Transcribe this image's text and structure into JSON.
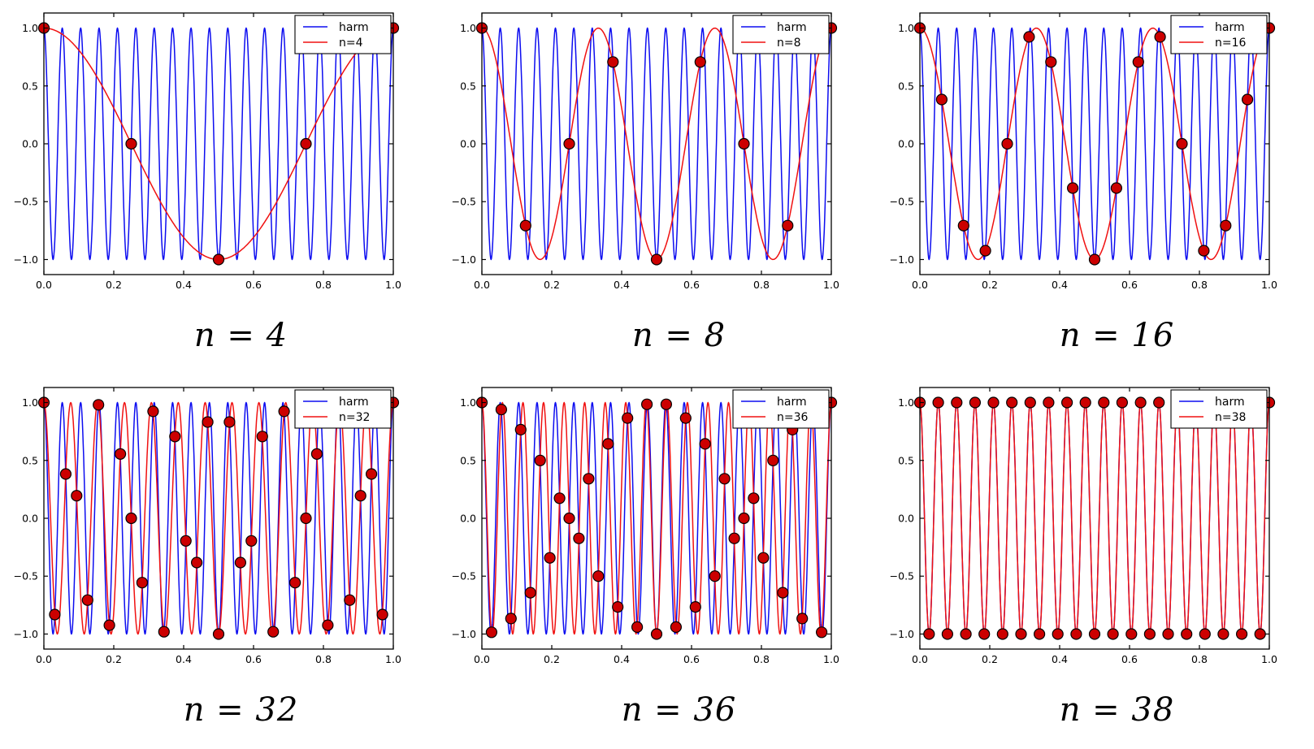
{
  "figure": {
    "background": "#ffffff",
    "layout": {
      "rows": 2,
      "cols": 3
    },
    "colors": {
      "harmonic_line": "#0d0df0",
      "alias_line": "#f01111",
      "sample_fill": "#cc0000",
      "sample_edge": "#000000",
      "axes_frame": "#000000"
    }
  },
  "chart_data": [
    {
      "type": "line",
      "title": "n = 4",
      "xlabel": "",
      "ylabel": "",
      "xlim": [
        0,
        1
      ],
      "ylim": [
        -1.13,
        1.13
      ],
      "xticks": [
        0,
        0.2,
        0.4,
        0.6,
        0.8,
        1
      ],
      "yticks": [
        -1,
        -0.5,
        0,
        0.5,
        1
      ],
      "grid": false,
      "legend_position": "upper right",
      "series": [
        {
          "name": "harm",
          "color": "#0d0df0",
          "type": "cosine",
          "amplitude": 1,
          "frequency": 19,
          "phase": 0,
          "function": "cos(2*pi*19*t)"
        },
        {
          "name": "n=4",
          "color": "#f01111",
          "type": "cosine",
          "amplitude": 1,
          "frequency": 1,
          "phase": 0,
          "function": "cos(2*pi*1*t)"
        }
      ],
      "samples": {
        "n": 4,
        "count": 5,
        "x_rule": "t_k = k/4, k = 0..4",
        "y_rule": "cos(2*pi*19*t_k)",
        "marker": "circle",
        "fill": "#cc0000",
        "edge": "#000000"
      }
    },
    {
      "type": "line",
      "title": "n = 8",
      "xlabel": "",
      "ylabel": "",
      "xlim": [
        0,
        1
      ],
      "ylim": [
        -1.13,
        1.13
      ],
      "xticks": [
        0,
        0.2,
        0.4,
        0.6,
        0.8,
        1
      ],
      "yticks": [
        -1,
        -0.5,
        0,
        0.5,
        1
      ],
      "grid": false,
      "legend_position": "upper right",
      "series": [
        {
          "name": "harm",
          "color": "#0d0df0",
          "type": "cosine",
          "amplitude": 1,
          "frequency": 19,
          "phase": 0,
          "function": "cos(2*pi*19*t)"
        },
        {
          "name": "n=8",
          "color": "#f01111",
          "type": "cosine",
          "amplitude": 1,
          "frequency": 3,
          "phase": 0,
          "function": "cos(2*pi*3*t)"
        }
      ],
      "samples": {
        "n": 8,
        "count": 9,
        "x_rule": "t_k = k/8, k = 0..8",
        "y_rule": "cos(2*pi*19*t_k)",
        "marker": "circle",
        "fill": "#cc0000",
        "edge": "#000000"
      }
    },
    {
      "type": "line",
      "title": "n = 16",
      "xlabel": "",
      "ylabel": "",
      "xlim": [
        0,
        1
      ],
      "ylim": [
        -1.13,
        1.13
      ],
      "xticks": [
        0,
        0.2,
        0.4,
        0.6,
        0.8,
        1
      ],
      "yticks": [
        -1,
        -0.5,
        0,
        0.5,
        1
      ],
      "grid": false,
      "legend_position": "upper right",
      "series": [
        {
          "name": "harm",
          "color": "#0d0df0",
          "type": "cosine",
          "amplitude": 1,
          "frequency": 19,
          "phase": 0,
          "function": "cos(2*pi*19*t)"
        },
        {
          "name": "n=16",
          "color": "#f01111",
          "type": "cosine",
          "amplitude": 1,
          "frequency": 3,
          "phase": 0,
          "function": "cos(2*pi*3*t)"
        }
      ],
      "samples": {
        "n": 16,
        "count": 17,
        "x_rule": "t_k = k/16, k = 0..16",
        "y_rule": "cos(2*pi*19*t_k)",
        "marker": "circle",
        "fill": "#cc0000",
        "edge": "#000000"
      }
    },
    {
      "type": "line",
      "title": "n = 32",
      "xlabel": "",
      "ylabel": "",
      "xlim": [
        0,
        1
      ],
      "ylim": [
        -1.13,
        1.13
      ],
      "xticks": [
        0,
        0.2,
        0.4,
        0.6,
        0.8,
        1
      ],
      "yticks": [
        -1,
        -0.5,
        0,
        0.5,
        1
      ],
      "grid": false,
      "legend_position": "upper right",
      "series": [
        {
          "name": "harm",
          "color": "#0d0df0",
          "type": "cosine",
          "amplitude": 1,
          "frequency": 19,
          "phase": 0,
          "function": "cos(2*pi*19*t)"
        },
        {
          "name": "n=32",
          "color": "#f01111",
          "type": "cosine",
          "amplitude": 1,
          "frequency": 13,
          "phase": 0,
          "function": "cos(2*pi*13*t)"
        }
      ],
      "samples": {
        "n": 32,
        "count": 33,
        "x_rule": "t_k = k/32, k = 0..32",
        "y_rule": "cos(2*pi*19*t_k)",
        "marker": "circle",
        "fill": "#cc0000",
        "edge": "#000000"
      }
    },
    {
      "type": "line",
      "title": "n = 36",
      "xlabel": "",
      "ylabel": "",
      "xlim": [
        0,
        1
      ],
      "ylim": [
        -1.13,
        1.13
      ],
      "xticks": [
        0,
        0.2,
        0.4,
        0.6,
        0.8,
        1
      ],
      "yticks": [
        -1,
        -0.5,
        0,
        0.5,
        1
      ],
      "grid": false,
      "legend_position": "upper right",
      "series": [
        {
          "name": "harm",
          "color": "#0d0df0",
          "type": "cosine",
          "amplitude": 1,
          "frequency": 19,
          "phase": 0,
          "function": "cos(2*pi*19*t)"
        },
        {
          "name": "n=36",
          "color": "#f01111",
          "type": "cosine",
          "amplitude": 1,
          "frequency": 17,
          "phase": 0,
          "function": "cos(2*pi*17*t)"
        }
      ],
      "samples": {
        "n": 36,
        "count": 37,
        "x_rule": "t_k = k/36, k = 0..36",
        "y_rule": "cos(2*pi*19*t_k)",
        "marker": "circle",
        "fill": "#cc0000",
        "edge": "#000000"
      }
    },
    {
      "type": "line",
      "title": "n = 38",
      "xlabel": "",
      "ylabel": "",
      "xlim": [
        0,
        1
      ],
      "ylim": [
        -1.13,
        1.13
      ],
      "xticks": [
        0,
        0.2,
        0.4,
        0.6,
        0.8,
        1
      ],
      "yticks": [
        -1,
        -0.5,
        0,
        0.5,
        1
      ],
      "grid": false,
      "legend_position": "upper right",
      "series": [
        {
          "name": "harm",
          "color": "#0d0df0",
          "type": "cosine",
          "amplitude": 1,
          "frequency": 19,
          "phase": 0,
          "function": "cos(2*pi*19*t)"
        },
        {
          "name": "n=38",
          "color": "#f01111",
          "type": "cosine",
          "amplitude": 1,
          "frequency": 19,
          "phase": 0,
          "function": "cos(2*pi*19*t)"
        }
      ],
      "samples": {
        "n": 38,
        "count": 39,
        "x_rule": "t_k = k/38, k = 0..38",
        "y_rule": "cos(2*pi*19*t_k) = (-1)^k",
        "marker": "circle",
        "fill": "#cc0000",
        "edge": "#000000"
      }
    }
  ]
}
